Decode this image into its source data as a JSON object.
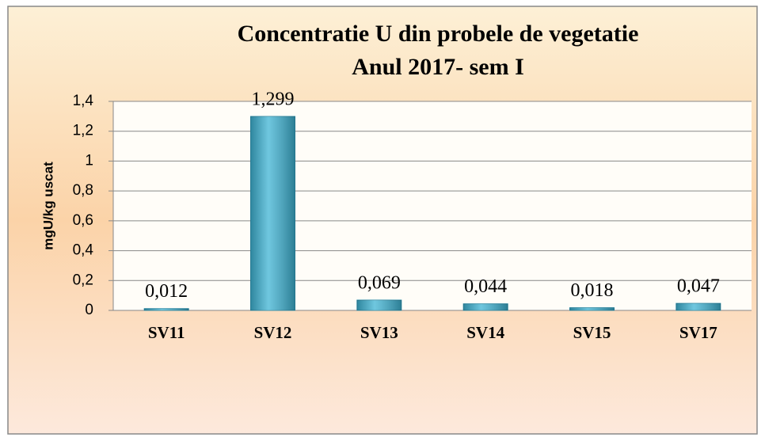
{
  "chart_data": {
    "type": "bar",
    "title": [
      "Concentratie U din probele de vegetatie",
      "Anul 2017- sem I"
    ],
    "y_label": "mgU/kg uscat",
    "categories": [
      "SV11",
      "SV12",
      "SV13",
      "SV14",
      "SV15",
      "SV17"
    ],
    "values": [
      0.012,
      1.299,
      0.069,
      0.044,
      0.018,
      0.047
    ],
    "value_labels": [
      "0,012",
      "1,299",
      "0,069",
      "0,044",
      "0,018",
      "0,047"
    ],
    "color": "#3fb4d4",
    "ylim": [
      0,
      1.4
    ],
    "yticks": [
      0,
      {
        "value": 0.2,
        "label": "0,2"
      },
      {
        "value": 0.4,
        "label": "0,4"
      },
      {
        "value": 0.6,
        "label": "0,6"
      },
      {
        "value": 0.8,
        "label": "0,8"
      },
      1,
      {
        "value": 1.2,
        "label": "1,2"
      },
      {
        "value": 1.4,
        "label": "1,4"
      }
    ],
    "grid": true
  }
}
